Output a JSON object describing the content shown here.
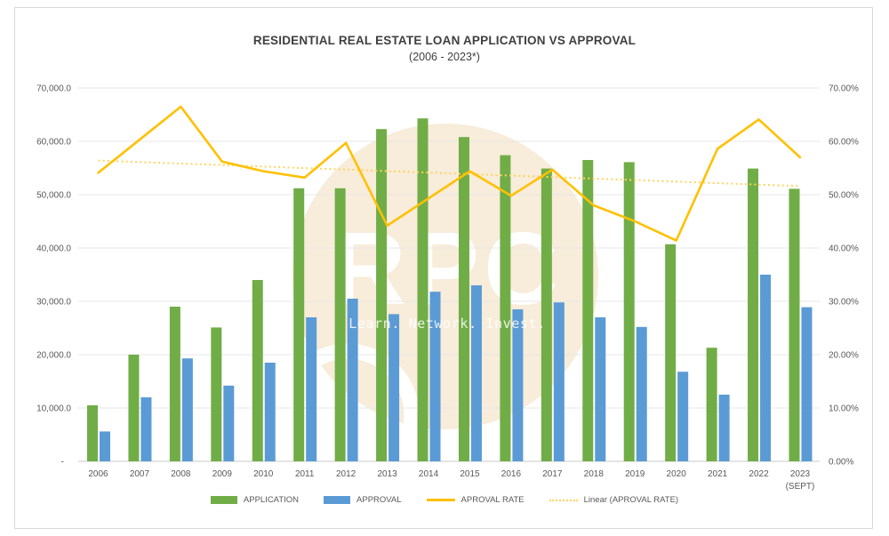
{
  "window": {
    "background": "#ffffff",
    "frame_border_color": "#d9d9d9"
  },
  "chart_data": {
    "type": "bar",
    "subtype": "combo-bar-line-dual-axis",
    "title": "RESIDENTIAL REAL ESTATE LOAN APPLICATION VS APPROVAL",
    "subtitle": "(2006 - 2023*)",
    "categories": [
      "2006",
      "2007",
      "2008",
      "2009",
      "2010",
      "2011",
      "2012",
      "2013",
      "2014",
      "2015",
      "2016",
      "2017",
      "2018",
      "2019",
      "2020",
      "2021",
      "2022",
      "2023"
    ],
    "last_category_note": "(SEPT)",
    "series": [
      {
        "name": "APPLICATION",
        "type": "bar",
        "axis": "left",
        "color": "#70AD47",
        "values": [
          10500,
          20000,
          29000,
          25100,
          34000,
          51200,
          51200,
          62300,
          64300,
          60800,
          57400,
          54900,
          56500,
          56100,
          40700,
          21300,
          54900,
          51100
        ]
      },
      {
        "name": "APPROVAL",
        "type": "bar",
        "axis": "left",
        "color": "#5B9BD5",
        "values": [
          5600,
          12000,
          19300,
          14200,
          18500,
          27000,
          30500,
          27600,
          31800,
          33000,
          28500,
          29800,
          27000,
          25200,
          16800,
          12500,
          35000,
          28900
        ]
      },
      {
        "name": "APROVAL RATE",
        "type": "line",
        "axis": "right",
        "color": "#FFC000",
        "values_pct": [
          54.1,
          60.3,
          66.5,
          56.2,
          54.4,
          53.2,
          59.7,
          44.2,
          49.3,
          54.4,
          49.8,
          54.7,
          48.0,
          45.0,
          41.4,
          58.6,
          64.1,
          57.0
        ]
      },
      {
        "name": "Linear (APROVAL RATE)",
        "type": "trendline",
        "style": "dotted",
        "axis": "right",
        "color": "#FFD45E",
        "start_pct": 56.4,
        "end_pct": 51.6
      }
    ],
    "left_axis": {
      "max": 70000,
      "min": 0,
      "tick_values": [
        70000,
        60000,
        50000,
        40000,
        30000,
        20000,
        10000,
        0
      ],
      "tick_labels": [
        "70,000.0",
        "60,000.0",
        "50,000.0",
        "40,000.0",
        "30,000.0",
        "20,000.0",
        "10,000.0",
        "-"
      ]
    },
    "right_axis": {
      "max": 70,
      "min": 0,
      "tick_values": [
        70,
        60,
        50,
        40,
        30,
        20,
        10,
        0
      ],
      "tick_labels": [
        "70.00%",
        "60.00%",
        "50.00%",
        "40.00%",
        "30.00%",
        "20.00%",
        "10.00%",
        "0.00%"
      ]
    },
    "grid": true,
    "gridline_color": "#e7e7e7",
    "axis_line_color": "#c9c9c9",
    "tick_text_color": "#595959",
    "legend_position": "bottom"
  },
  "watermark": {
    "letters": "RPC",
    "tagline": "Learn. Network. Invest.",
    "circle_color": "#F8ECDA",
    "text_color": "#ffffff"
  }
}
